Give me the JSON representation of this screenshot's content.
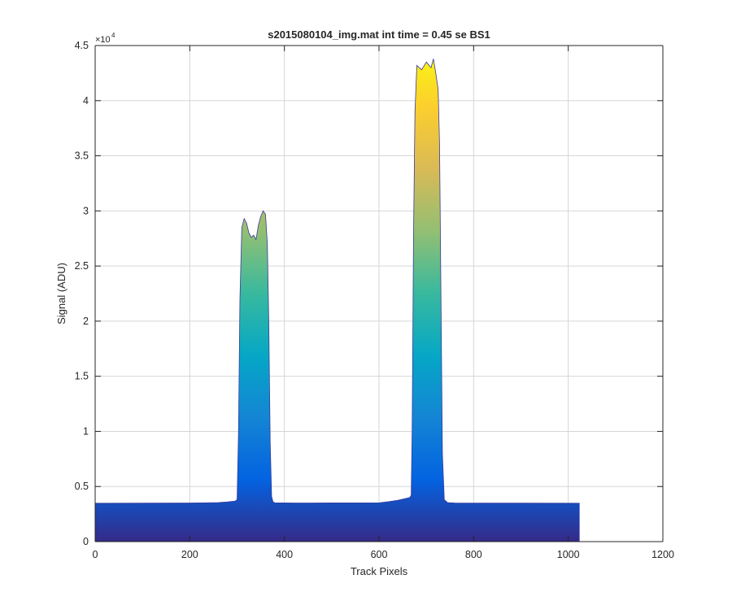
{
  "chart_data": {
    "type": "area",
    "title": "s2015080104_img.mat int time = 0.45 se   BS1",
    "xlabel": "Track Pixels",
    "ylabel": "Signal (ADU)",
    "xlim": [
      0,
      1200
    ],
    "ylim": [
      0,
      45000
    ],
    "y_exponent_label": "×10",
    "y_exponent_power": "4",
    "xticks": [
      0,
      200,
      400,
      600,
      800,
      1000,
      1200
    ],
    "xtick_labels": [
      "0",
      "200",
      "400",
      "600",
      "800",
      "1000",
      "1200"
    ],
    "yticks": [
      0,
      5000,
      10000,
      15000,
      20000,
      25000,
      30000,
      35000,
      40000,
      45000
    ],
    "ytick_labels": [
      "0",
      "0.5",
      "1",
      "1.5",
      "2",
      "2.5",
      "3",
      "3.5",
      "4",
      "4.5"
    ],
    "grid": true,
    "colormap": "parula",
    "colormap_stops": [
      "#352a87",
      "#0363e1",
      "#1485d4",
      "#06a7c6",
      "#38b99e",
      "#92bf73",
      "#d9ba56",
      "#fcce2e",
      "#f9fb0e"
    ],
    "baseline_color": "#3a3a9a",
    "series": [
      {
        "x": [
          0,
          200,
          260,
          280,
          296,
          300,
          303,
          306,
          310,
          315,
          320,
          325,
          330,
          335,
          340,
          345,
          350,
          355,
          360,
          364,
          367,
          370,
          373,
          376,
          380,
          420,
          500,
          600,
          620,
          640,
          655,
          665,
          668,
          670,
          673,
          676,
          680,
          690,
          700,
          710,
          715,
          720,
          725,
          728,
          731,
          734,
          738,
          745,
          760,
          900,
          1024
        ],
        "y": [
          3480,
          3500,
          3540,
          3600,
          3680,
          3800,
          10000,
          22000,
          28500,
          29300,
          28900,
          28000,
          27600,
          27800,
          27400,
          28700,
          29500,
          30000,
          29700,
          27000,
          20000,
          9000,
          4100,
          3600,
          3520,
          3500,
          3510,
          3520,
          3620,
          3750,
          3900,
          4000,
          4200,
          10000,
          28000,
          39000,
          43200,
          42800,
          43500,
          43000,
          43800,
          42500,
          41000,
          36000,
          22000,
          8000,
          3800,
          3540,
          3500,
          3490,
          3480
        ]
      }
    ]
  }
}
